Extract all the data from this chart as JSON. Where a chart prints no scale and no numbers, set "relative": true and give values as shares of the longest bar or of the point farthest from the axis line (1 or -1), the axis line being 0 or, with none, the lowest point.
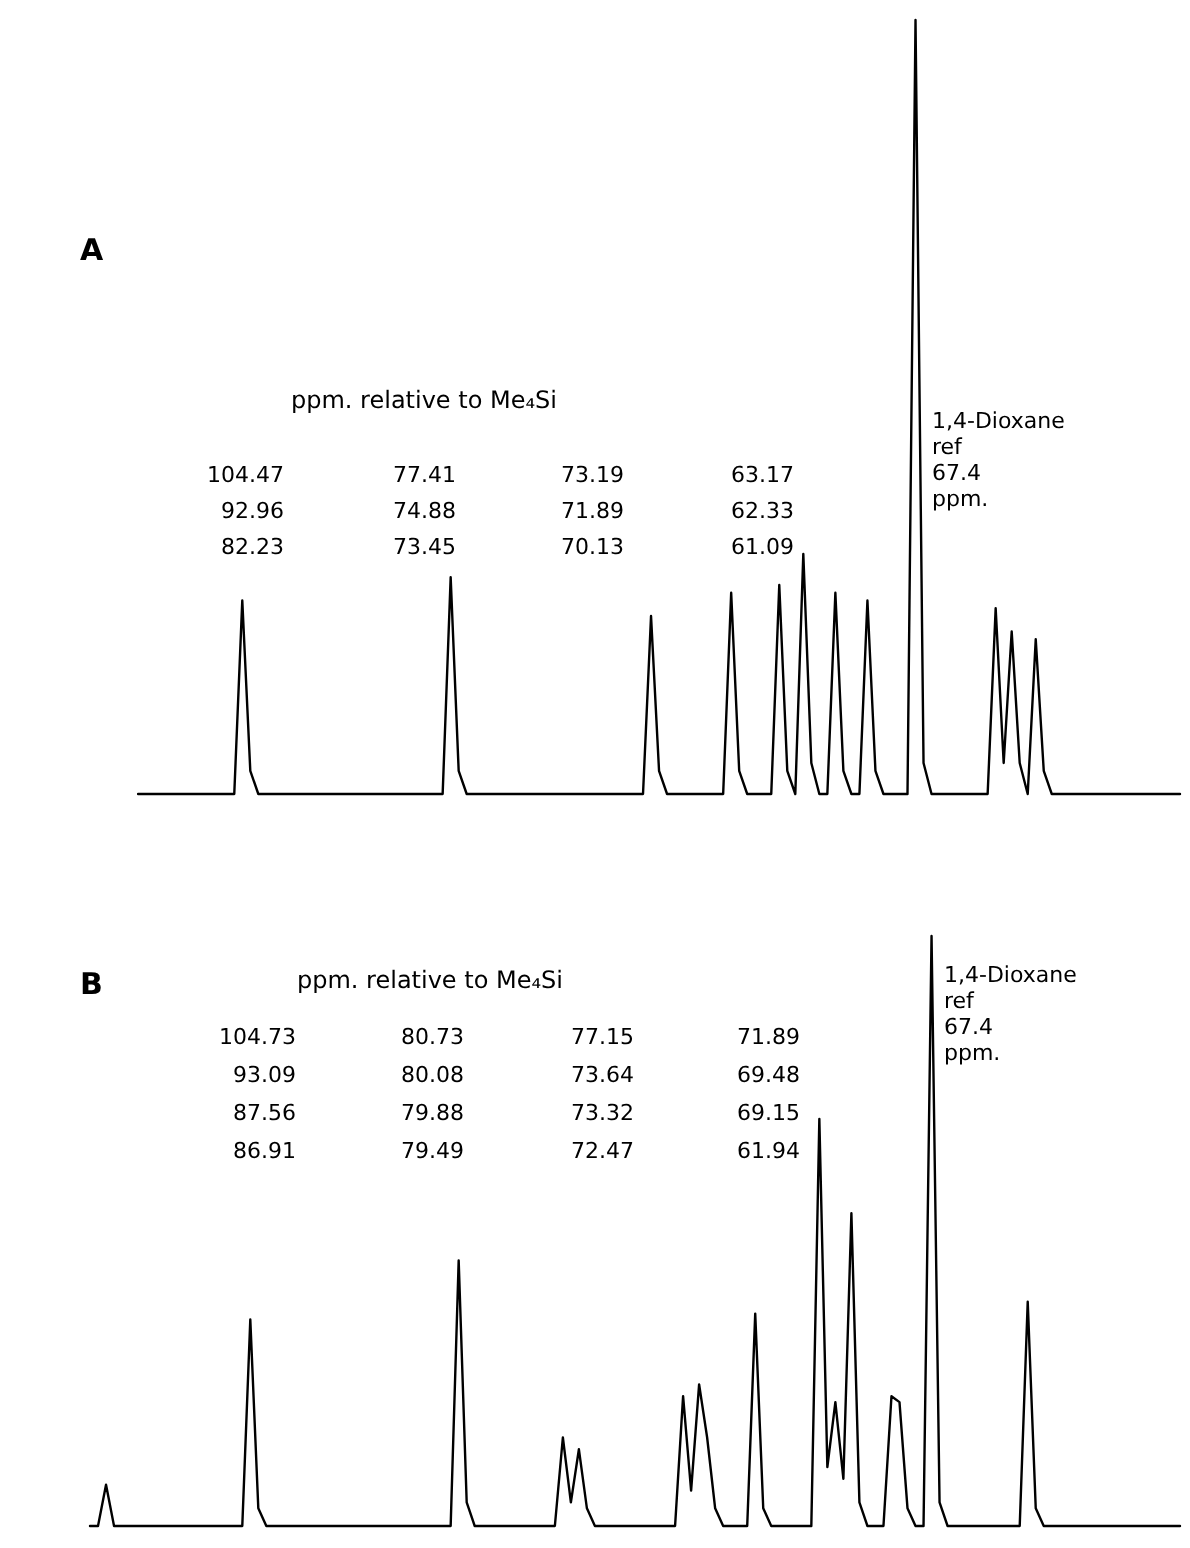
{
  "chart_data": [
    {
      "type": "line",
      "title": "A",
      "relative": true,
      "line_style": "solid",
      "annotations": [
        "ppm. relative to Me₄Si",
        "104.47\n92.96\n82.23",
        "77.41\n74.88\n73.45",
        "73.19\n71.89\n70.13",
        "63.17\n62.33\n61.09",
        "1,4-Dioxane\nref\n67.4\nppm."
      ],
      "categories": [
        null,
        null,
        null,
        null,
        null,
        null,
        null,
        null,
        null,
        null,
        null,
        null,
        null,
        null,
        null,
        null,
        null,
        null,
        null,
        null,
        null,
        null,
        null,
        null,
        null,
        null,
        null,
        null,
        null,
        null,
        null,
        null,
        null,
        null,
        null,
        null,
        null,
        null,
        null,
        null,
        null,
        null,
        null,
        null,
        null,
        null,
        null,
        null,
        null,
        null,
        null,
        null,
        null,
        null,
        null,
        null,
        null,
        null,
        null,
        null,
        null,
        null,
        null,
        null,
        null,
        null,
        null,
        null,
        null,
        null,
        null,
        null,
        null,
        null,
        null,
        null,
        null,
        null,
        null,
        null,
        null,
        null,
        null,
        null,
        null,
        null,
        null,
        null,
        null,
        null,
        null,
        null,
        null,
        null,
        null,
        null,
        null,
        null,
        null,
        null,
        null,
        null,
        null,
        null,
        null,
        null,
        null,
        null,
        null,
        null,
        null,
        null,
        null,
        null,
        null,
        null,
        null,
        null,
        null,
        null,
        null,
        null,
        null,
        null,
        null,
        null,
        null,
        null,
        null,
        null,
        null,
        null,
        null,
        null,
        null,
        null,
        null
      ],
      "series": [
        {
          "color": "#000000",
          "values": [
            null,
            null,
            null,
            null,
            null,
            null,
            0,
            0,
            0,
            0,
            0,
            0,
            0,
            0,
            0,
            0,
            0,
            0,
            0,
            0.25,
            0.03,
            0,
            0,
            0,
            0,
            0,
            0,
            0,
            0,
            0,
            0,
            0,
            0,
            0,
            0,
            0,
            0,
            0,
            0,
            0,
            0,
            0,
            0,
            0,
            0,
            0.28,
            0.03,
            0,
            0,
            0,
            0,
            0,
            0,
            0,
            0,
            0,
            0,
            0,
            0,
            0,
            0,
            0,
            0,
            0,
            0,
            0,
            0,
            0,
            0,
            0,
            0.23,
            0.03,
            0,
            0,
            0,
            0,
            0,
            0,
            0,
            0,
            0.26,
            0.03,
            0,
            0,
            0,
            0,
            0.27,
            0.03,
            0,
            0.31,
            0.04,
            0,
            0,
            0.26,
            0.03,
            0,
            0,
            0.25,
            0.03,
            0,
            0,
            0,
            0,
            1,
            0.04,
            0,
            0,
            0,
            0,
            0,
            0,
            0,
            0,
            0.24,
            0.04,
            0.21,
            0.04,
            0,
            0.2,
            0.03,
            0,
            0,
            0,
            0,
            0,
            0,
            0,
            0,
            0,
            0,
            0,
            0,
            0,
            0,
            0,
            0,
            0
          ]
        }
      ]
    },
    {
      "type": "line",
      "title": "B",
      "relative": true,
      "line_style": "solid",
      "annotations": [
        "ppm. relative to Me₄Si",
        "104.73\n93.09\n87.56\n86.91",
        "80.73\n80.08\n79.88\n79.49",
        "77.15\n73.64\n73.32\n72.47",
        "71.89\n69.48\n69.15\n61.94",
        "1,4-Dioxane\nref\n67.4\nppm."
      ],
      "categories": [
        null,
        null,
        null,
        null,
        null,
        null,
        null,
        null,
        null,
        null,
        null,
        null,
        null,
        null,
        null,
        null,
        null,
        null,
        null,
        null,
        null,
        null,
        null,
        null,
        null,
        null,
        null,
        null,
        null,
        null,
        null,
        null,
        null,
        null,
        null,
        null,
        null,
        null,
        null,
        null,
        null,
        null,
        null,
        null,
        null,
        null,
        null,
        null,
        null,
        null,
        null,
        null,
        null,
        null,
        null,
        null,
        null,
        null,
        null,
        null,
        null,
        null,
        null,
        null,
        null,
        null,
        null,
        null,
        null,
        null,
        null,
        null,
        null,
        null,
        null,
        null,
        null,
        null,
        null,
        null,
        null,
        null,
        null,
        null,
        null,
        null,
        null,
        null,
        null,
        null,
        null,
        null,
        null,
        null,
        null,
        null,
        null,
        null,
        null,
        null,
        null,
        null,
        null,
        null,
        null,
        null,
        null,
        null,
        null,
        null,
        null,
        null,
        null,
        null,
        null,
        null,
        null,
        null,
        null,
        null,
        null,
        null,
        null,
        null,
        null,
        null,
        null,
        null,
        null,
        null,
        null,
        null,
        null,
        null,
        null,
        null,
        null
      ],
      "series": [
        {
          "color": "#000000",
          "values": [
            0,
            0,
            0.07,
            0,
            0,
            0,
            0,
            0,
            0,
            0,
            0,
            0,
            0,
            0,
            0,
            0,
            0,
            0,
            0,
            0,
            0.35,
            0.03,
            0,
            0,
            0,
            0,
            0,
            0,
            0,
            0,
            0,
            0,
            0,
            0,
            0,
            0,
            0,
            0,
            0,
            0,
            0,
            0,
            0,
            0,
            0,
            0,
            0.45,
            0.04,
            0,
            0,
            0,
            0,
            0,
            0,
            0,
            0,
            0,
            0,
            0,
            0.15,
            0.04,
            0.13,
            0.03,
            0,
            0,
            0,
            0,
            0,
            0,
            0,
            0,
            0,
            0,
            0,
            0.22,
            0.06,
            0.24,
            0.15,
            0.03,
            0,
            0,
            0,
            0,
            0.36,
            0.03,
            0,
            0,
            0,
            0,
            0,
            0,
            0.69,
            0.1,
            0.21,
            0.08,
            0.53,
            0.04,
            0,
            0,
            0,
            0.22,
            0.21,
            0.03,
            0,
            0,
            1,
            0.04,
            0,
            0,
            0,
            0,
            0,
            0,
            0,
            0,
            0,
            0,
            0.38,
            0.03,
            0,
            0,
            0,
            0,
            0,
            0,
            0,
            0,
            0,
            0,
            0,
            0,
            0,
            0,
            0,
            0,
            0,
            0
          ]
        }
      ]
    }
  ]
}
